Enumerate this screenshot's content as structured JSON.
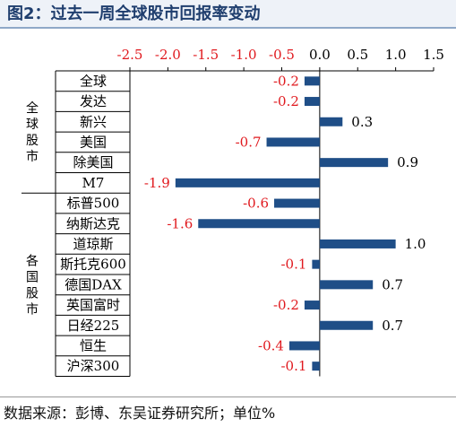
{
  "title": "图2：过去一周全球股市回报率变动",
  "source": "数据来源：彭博、东吴证券研究所；单位%",
  "colors": {
    "bar": "#1f4e87",
    "negative_label": "#e0191e",
    "positive_label": "#000000",
    "title": "#1f3e6e"
  },
  "chart_data": {
    "type": "bar",
    "orientation": "horizontal",
    "xlim": [
      -2.5,
      1.5
    ],
    "xticks": [
      "-2.5",
      "-2.0",
      "-1.5",
      "-1.0",
      "-0.5",
      "0.0",
      "0.5",
      "1.0",
      "1.5"
    ],
    "xtick_values": [
      -2.5,
      -2.0,
      -1.5,
      -1.0,
      -0.5,
      0.0,
      0.5,
      1.0,
      1.5
    ],
    "groups": [
      {
        "name": "全球股市",
        "count": 6
      },
      {
        "name": "各国股市",
        "count": 9
      }
    ],
    "categories": [
      "全球",
      "发达",
      "新兴",
      "美国",
      "除美国",
      "M7",
      "标普500",
      "纳斯达克",
      "道琼斯",
      "斯托克600",
      "德国DAX",
      "英国富时",
      "日经225",
      "恒生",
      "沪深300"
    ],
    "values": [
      -0.2,
      -0.2,
      0.3,
      -0.7,
      0.9,
      -1.9,
      -0.6,
      -1.6,
      1.0,
      -0.1,
      0.7,
      -0.2,
      0.7,
      -0.4,
      -0.1
    ],
    "value_labels": [
      "-0.2",
      "-0.2",
      "0.3",
      "-0.7",
      "0.9",
      "-1.9",
      "-0.6",
      "-1.6",
      "1.0",
      "-0.1",
      "0.7",
      "-0.2",
      "0.7",
      "-0.4",
      "-0.1"
    ],
    "grid": false,
    "legend": "none"
  }
}
